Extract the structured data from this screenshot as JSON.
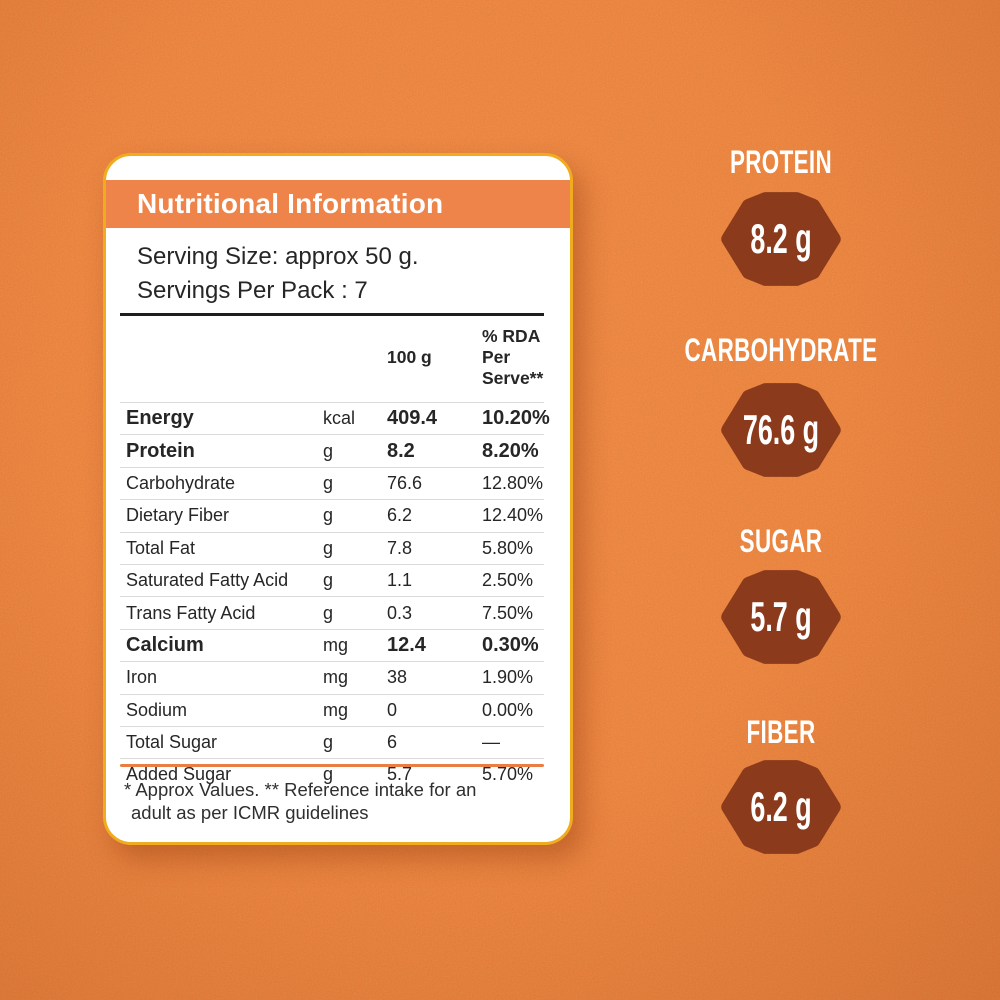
{
  "colors": {
    "background": "#E8793B",
    "header_band": "#EE8449",
    "card_border": "#F0AC1E",
    "card_bg": "#FFFFFF",
    "badge": "#8B3B1C",
    "divider": "#E97E45",
    "separator": "#DADADA",
    "text": "#262626",
    "footnote": "#2F2F2F"
  },
  "card": {
    "title": "Nutritional Information",
    "serving_size": "Serving Size: approx 50 g.",
    "servings_per_pack": "Servings Per Pack : 7",
    "columns": {
      "amount": "100 g",
      "rda_line1": "% RDA Per",
      "rda_line2": "Serve**"
    },
    "rows": [
      {
        "name": "Energy",
        "unit": "kcal",
        "value": "409.4",
        "rda": "10.20%",
        "bold": true
      },
      {
        "name": "Protein",
        "unit": "g",
        "value": "8.2",
        "rda": "8.20%",
        "bold": true
      },
      {
        "name": "Carbohydrate",
        "unit": "g",
        "value": "76.6",
        "rda": "12.80%",
        "bold": false
      },
      {
        "name": "Dietary Fiber",
        "unit": "g",
        "value": "6.2",
        "rda": "12.40%",
        "bold": false
      },
      {
        "name": "Total Fat",
        "unit": "g",
        "value": "7.8",
        "rda": "5.80%",
        "bold": false
      },
      {
        "name": "Saturated Fatty Acid",
        "unit": "g",
        "value": "1.1",
        "rda": "2.50%",
        "bold": false
      },
      {
        "name": "Trans Fatty Acid",
        "unit": "g",
        "value": "0.3",
        "rda": "7.50%",
        "bold": false
      },
      {
        "name": "Calcium",
        "unit": "mg",
        "value": "12.4",
        "rda": "0.30%",
        "bold": true
      },
      {
        "name": "Iron",
        "unit": "mg",
        "value": "38",
        "rda": "1.90%",
        "bold": false
      },
      {
        "name": "Sodium",
        "unit": "mg",
        "value": "0",
        "rda": "0.00%",
        "bold": false
      },
      {
        "name": "Total Sugar",
        "unit": "g",
        "value": "6",
        "rda": "—",
        "bold": false
      },
      {
        "name": "Added Sugar",
        "unit": "g",
        "value": "5.7",
        "rda": "5.70%",
        "bold": false
      }
    ],
    "footnote_line1": "* Approx Values. ** Reference intake for an",
    "footnote_line2": "adult as per ICMR guidelines"
  },
  "badges": [
    {
      "label": "PROTEIN",
      "value": "8.2 g"
    },
    {
      "label": "CARBOHYDRATE",
      "value": "76.6 g"
    },
    {
      "label": "SUGAR",
      "value": "5.7 g"
    },
    {
      "label": "FIBER",
      "value": "6.2 g"
    }
  ]
}
